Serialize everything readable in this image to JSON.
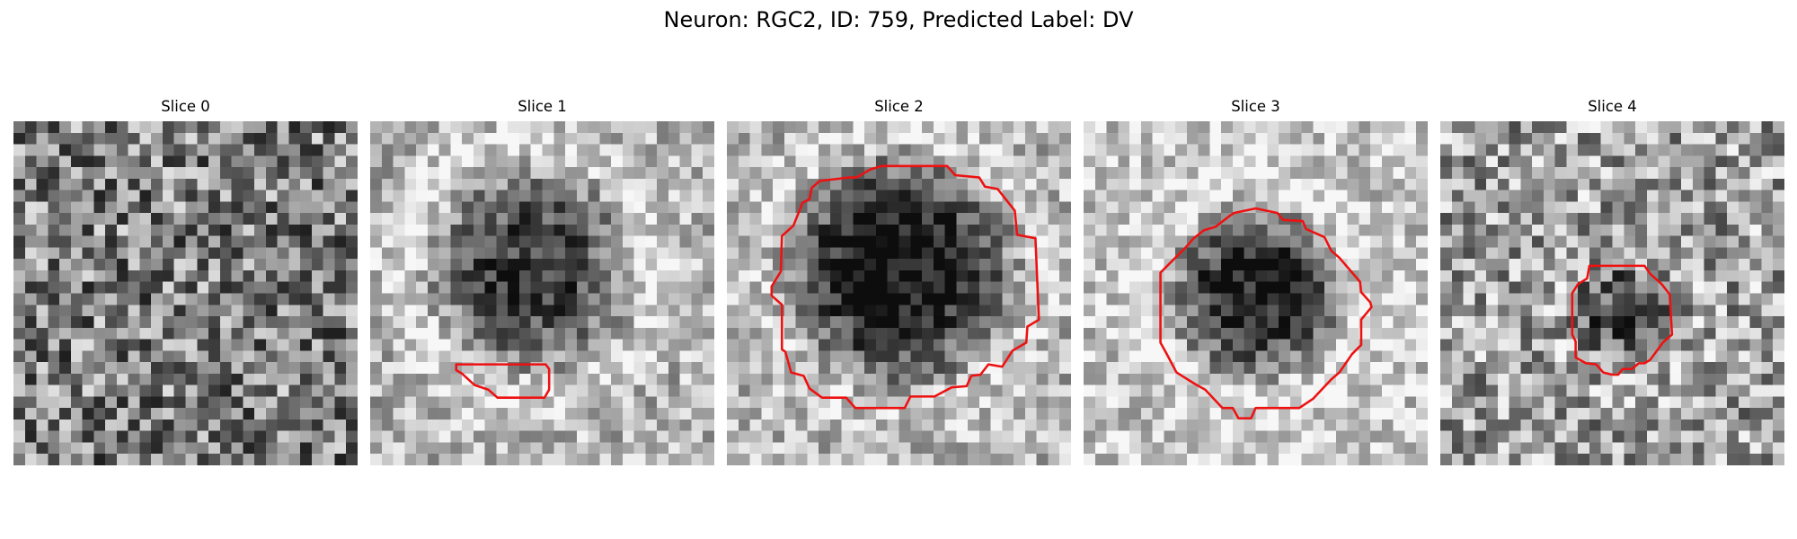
{
  "figure": {
    "title": "Neuron: RGC2, ID: 759, Predicted Label: DV"
  },
  "colors": {
    "contour": "#ee1111",
    "background": "#ffffff"
  },
  "slices": [
    {
      "title": "Slice 0",
      "contour": "none",
      "blob_darkness": 0.0
    },
    {
      "title": "Slice 1",
      "contour": "small-elongated",
      "blob_darkness": 0.45
    },
    {
      "title": "Slice 2",
      "contour": "large-polygon",
      "blob_darkness": 0.65
    },
    {
      "title": "Slice 3",
      "contour": "medium-polygon",
      "blob_darkness": 0.65
    },
    {
      "title": "Slice 4",
      "contour": "small-polygon",
      "blob_darkness": 0.3
    }
  ]
}
